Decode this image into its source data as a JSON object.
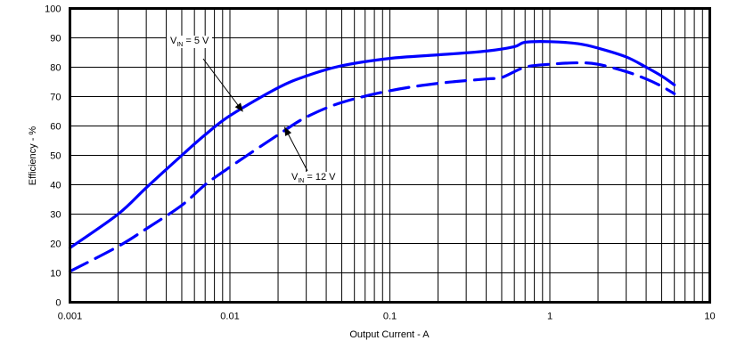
{
  "chart_data": {
    "type": "line",
    "title": "",
    "xlabel": "Output Current - A",
    "ylabel": "Efficiency - %",
    "xscale": "log",
    "xlim": [
      0.001,
      10
    ],
    "ylim": [
      0,
      100
    ],
    "x_ticks": [
      "0.001",
      "0.01",
      "0.1",
      "1",
      "10"
    ],
    "y_ticks": [
      "0",
      "10",
      "20",
      "30",
      "40",
      "50",
      "60",
      "70",
      "80",
      "90",
      "100"
    ],
    "grid": true,
    "legend": "inline annotations with arrows",
    "series": [
      {
        "name": "VIN = 5 V",
        "style": "solid",
        "color": "#0000ff",
        "points": [
          [
            0.001,
            18.5
          ],
          [
            0.002,
            30
          ],
          [
            0.003,
            39
          ],
          [
            0.005,
            50
          ],
          [
            0.007,
            57
          ],
          [
            0.01,
            63.5
          ],
          [
            0.02,
            73
          ],
          [
            0.03,
            77
          ],
          [
            0.05,
            80.5
          ],
          [
            0.1,
            83
          ],
          [
            0.2,
            84.2
          ],
          [
            0.4,
            85.5
          ],
          [
            0.6,
            87
          ],
          [
            0.7,
            88.5
          ],
          [
            1.0,
            88.7
          ],
          [
            1.5,
            88
          ],
          [
            2,
            86.5
          ],
          [
            3,
            83.5
          ],
          [
            4,
            80
          ],
          [
            5,
            77
          ],
          [
            6,
            74
          ]
        ]
      },
      {
        "name": "VIN = 12 V",
        "style": "dashed",
        "color": "#0000ff",
        "points": [
          [
            0.001,
            10.5
          ],
          [
            0.002,
            19
          ],
          [
            0.003,
            25
          ],
          [
            0.005,
            33
          ],
          [
            0.007,
            40
          ],
          [
            0.01,
            46
          ],
          [
            0.02,
            57
          ],
          [
            0.03,
            63
          ],
          [
            0.05,
            68
          ],
          [
            0.1,
            72
          ],
          [
            0.2,
            74.5
          ],
          [
            0.4,
            76
          ],
          [
            0.5,
            76.5
          ],
          [
            0.7,
            80
          ],
          [
            1.0,
            81
          ],
          [
            1.5,
            81.5
          ],
          [
            2,
            81
          ],
          [
            3,
            78.5
          ],
          [
            4,
            76
          ],
          [
            5,
            73.5
          ],
          [
            6,
            71
          ]
        ]
      }
    ],
    "annotations": [
      {
        "text_main": "V",
        "text_sub": "IN",
        "text_rest": " = 5 V",
        "arrow_to": [
          0.012,
          65
        ]
      },
      {
        "text_main": "V",
        "text_sub": "IN",
        "text_rest": " = 12 V",
        "arrow_to": [
          0.022,
          59.5
        ]
      }
    ]
  },
  "labels": {
    "annotation_5v_v": "V",
    "annotation_5v_sub": "IN",
    "annotation_5v_rest": " = 5 V",
    "annotation_12v_v": "V",
    "annotation_12v_sub": "IN",
    "annotation_12v_rest": " = 12 V"
  }
}
